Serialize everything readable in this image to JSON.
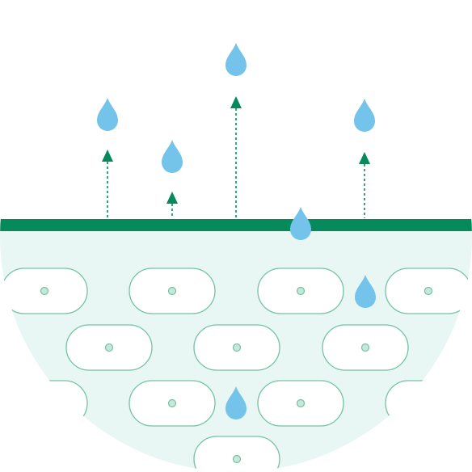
{
  "colors": {
    "background": "#ffffff",
    "tissue_fill": "#e8f6f4",
    "cell_outline": "#73c3a1",
    "cell_fill": "#ffffff",
    "nucleus_fill": "#c6e8dc",
    "membrane": "#078a5b",
    "arrow": "#078a5b",
    "droplet": "#74c3ea"
  },
  "icons": {
    "droplet": "water-droplet-icon",
    "arrow": "upward-arrow-icon"
  }
}
